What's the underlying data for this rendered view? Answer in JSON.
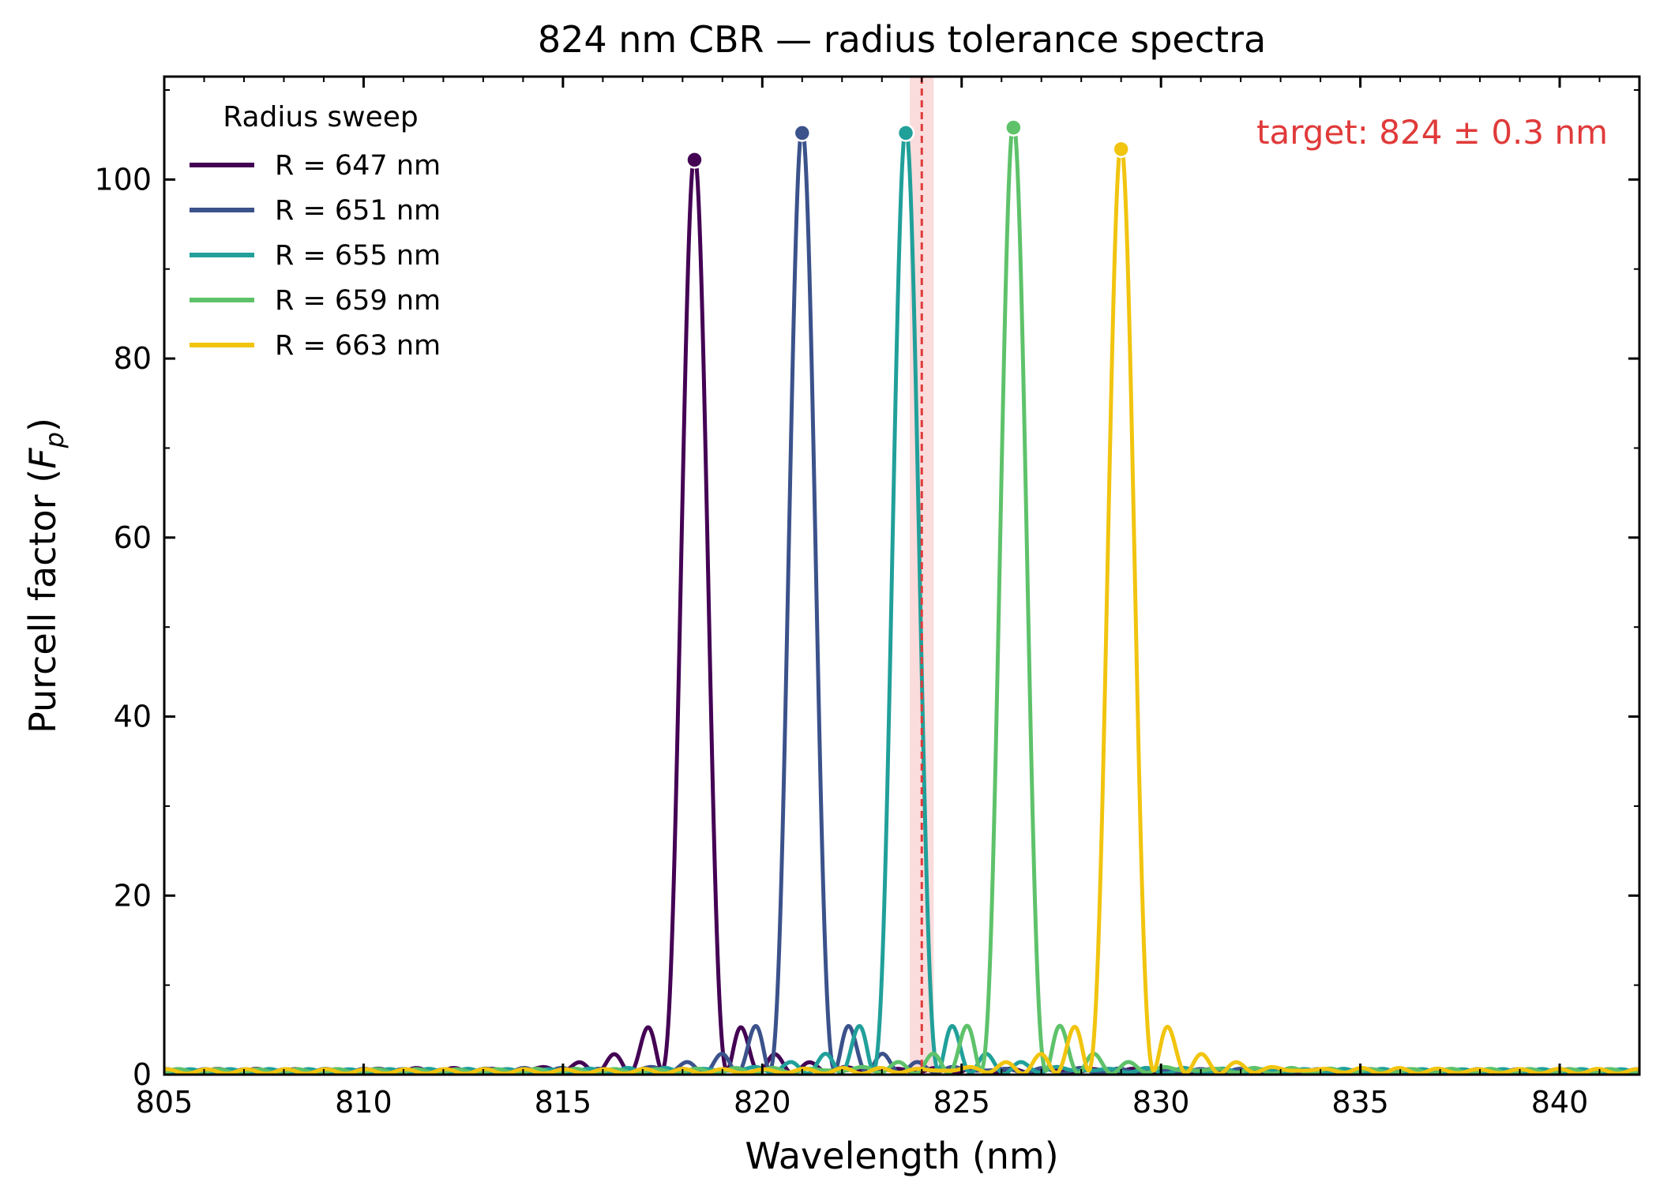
{
  "chart_data": {
    "type": "line",
    "title": "824 nm CBR — radius tolerance spectra",
    "xlabel": "Wavelength (nm)",
    "ylabel_main": "Purcell factor (",
    "ylabel_symbol": "F",
    "ylabel_sub": "p",
    "ylabel_close": ")",
    "xlim": [
      805,
      842
    ],
    "ylim": [
      0,
      111.5
    ],
    "x_ticks": [
      805,
      810,
      815,
      820,
      825,
      830,
      835,
      840
    ],
    "x_tick_labels": [
      "805",
      "810",
      "815",
      "820",
      "825",
      "830",
      "835",
      "840"
    ],
    "y_ticks": [
      0,
      20,
      40,
      60,
      80,
      100
    ],
    "y_tick_labels": [
      "0",
      "20",
      "40",
      "60",
      "80",
      "100"
    ],
    "grid": false,
    "legend": {
      "title": "Radius sweep",
      "placement": "top-left"
    },
    "target": {
      "wavelength": 824,
      "tolerance": 0.3,
      "label": "target: 824 ± 0.3 nm",
      "color": "#e03a3a"
    },
    "series": [
      {
        "name": "R = 647 nm",
        "color": "#440154",
        "peak_x": 818.3,
        "peak_y": 102.2
      },
      {
        "name": "R = 651 nm",
        "color": "#3b528b",
        "peak_x": 821.0,
        "peak_y": 105.2
      },
      {
        "name": "R = 655 nm",
        "color": "#21a09a",
        "peak_x": 823.6,
        "peak_y": 105.2
      },
      {
        "name": "R = 659 nm",
        "color": "#5ec26a",
        "peak_x": 826.3,
        "peak_y": 105.8
      },
      {
        "name": "R = 663 nm",
        "color": "#f1c40f",
        "peak_x": 829.0,
        "peak_y": 103.4
      }
    ]
  }
}
